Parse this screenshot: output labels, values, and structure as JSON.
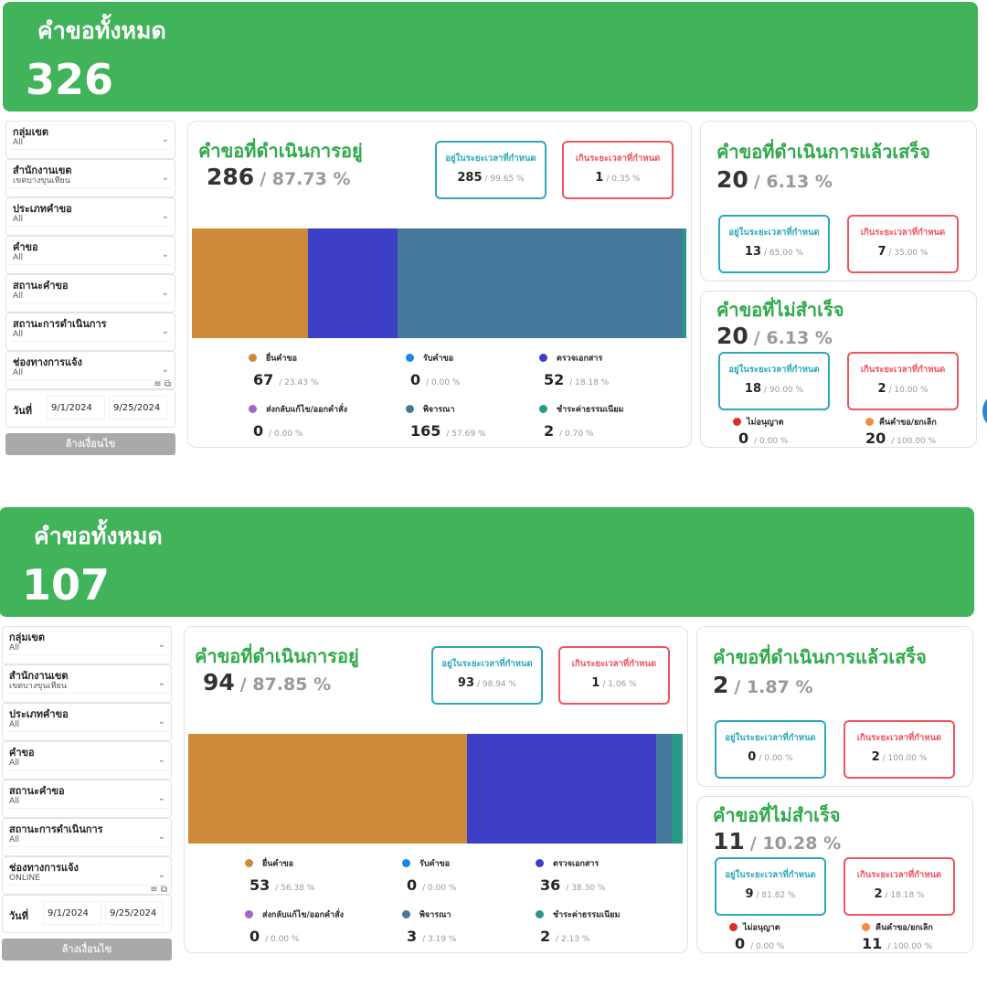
{
  "dashboards": [
    {
      "total_label": "คำขอทั้งหมด",
      "total": "326",
      "filters": [
        {
          "label": "กลุ่มเขต",
          "value": "All"
        },
        {
          "label": "สำนักงานเขต",
          "value": "เขตบางขุนเทียน"
        },
        {
          "label": "ประเภทคำขอ",
          "value": "All"
        },
        {
          "label": "คำขอ",
          "value": "All"
        },
        {
          "label": "สถานะคำขอ",
          "value": "All"
        },
        {
          "label": "สถานะการดำเนินการ",
          "value": "All"
        },
        {
          "label": "ช่องทางการแจ้ง",
          "value": "All"
        }
      ],
      "date": {
        "label": "วันที่",
        "from": "9/1/2024",
        "to": "9/25/2024"
      },
      "clear_label": "ล้างเงื่อนไข",
      "inprogress": {
        "title": "คำขอที่ดำเนินการอยู่",
        "count": "286",
        "pct": "/ 87.73 %",
        "ontime": {
          "label": "อยู่ในระยะเวลาที่กำหนด",
          "count": "285",
          "pct": "/ 99.65 %"
        },
        "overdue": {
          "label": "เกินระยะเวลาที่กำหนด",
          "count": "1",
          "pct": "/ 0.35 %"
        },
        "segments": [
          {
            "label": "ยื่นคำขอ",
            "value": 67,
            "count": "67",
            "pct": "/ 23.43 %",
            "color": "#CD8A3A"
          },
          {
            "label": "รับคำขอ",
            "value": 0,
            "count": "0",
            "pct": "/ 0.00 %",
            "color": "#1A86E8"
          },
          {
            "label": "ตรวจเอกสาร",
            "value": 52,
            "count": "52",
            "pct": "/ 18.18 %",
            "color": "#3D3FC6"
          },
          {
            "label": "ส่งกลับแก้ไข/ออกคำสั่ง",
            "value": 0,
            "count": "0",
            "pct": "/ 0.00 %",
            "color": "#A066CB"
          },
          {
            "label": "พิจารณา",
            "value": 165,
            "count": "165",
            "pct": "/ 57.69 %",
            "color": "#44799B"
          },
          {
            "label": "ชำระค่าธรรมเนียม",
            "value": 2,
            "count": "2",
            "pct": "/ 0.70 %",
            "color": "#2A9A88"
          }
        ]
      },
      "completed": {
        "title": "คำขอที่ดำเนินการแล้วเสร็จ",
        "count": "20",
        "pct": "/ 6.13 %",
        "ontime": {
          "label": "อยู่ในระยะเวลาที่กำหนด",
          "count": "13",
          "pct": "/ 65.00 %"
        },
        "overdue": {
          "label": "เกินระยะเวลาที่กำหนด",
          "count": "7",
          "pct": "/ 35.00 %"
        }
      },
      "failed": {
        "title": "คำขอที่ไม่สำเร็จ",
        "count": "20",
        "pct": "/ 6.13 %",
        "ontime": {
          "label": "อยู่ในระยะเวลาที่กำหนด",
          "count": "18",
          "pct": "/ 90.00 %"
        },
        "overdue": {
          "label": "เกินระยะเวลาที่กำหนด",
          "count": "2",
          "pct": "/ 10.00 %"
        },
        "outcomes": [
          {
            "label": "ไม่อนุญาต",
            "count": "0",
            "pct": "/ 0.00 %",
            "color": "#D93025"
          },
          {
            "label": "คืนคำขอ/ยกเลิก",
            "count": "20",
            "pct": "/ 100.00 %",
            "color": "#F58A42"
          }
        ]
      }
    },
    {
      "total_label": "คำขอทั้งหมด",
      "total": "107",
      "filters": [
        {
          "label": "กลุ่มเขต",
          "value": "All"
        },
        {
          "label": "สำนักงานเขต",
          "value": "เขตบางขุนเทียน"
        },
        {
          "label": "ประเภทคำขอ",
          "value": "All"
        },
        {
          "label": "คำขอ",
          "value": "All"
        },
        {
          "label": "สถานะคำขอ",
          "value": "All"
        },
        {
          "label": "สถานะการดำเนินการ",
          "value": "All"
        },
        {
          "label": "ช่องทางการแจ้ง",
          "value": "ONLINE"
        }
      ],
      "date": {
        "label": "วันที่",
        "from": "9/1/2024",
        "to": "9/25/2024"
      },
      "clear_label": "ล้างเงื่อนไข",
      "inprogress": {
        "title": "คำขอที่ดำเนินการอยู่",
        "count": "94",
        "pct": "/ 87.85 %",
        "ontime": {
          "label": "อยู่ในระยะเวลาที่กำหนด",
          "count": "93",
          "pct": "/ 98.94 %"
        },
        "overdue": {
          "label": "เกินระยะเวลาที่กำหนด",
          "count": "1",
          "pct": "/ 1.06 %"
        },
        "segments": [
          {
            "label": "ยื่นคำขอ",
            "value": 53,
            "count": "53",
            "pct": "/ 56.38 %",
            "color": "#CD8A3A"
          },
          {
            "label": "รับคำขอ",
            "value": 0,
            "count": "0",
            "pct": "/ 0.00 %",
            "color": "#1A86E8"
          },
          {
            "label": "ตรวจเอกสาร",
            "value": 36,
            "count": "36",
            "pct": "/ 38.30 %",
            "color": "#3D3FC6"
          },
          {
            "label": "ส่งกลับแก้ไข/ออกคำสั่ง",
            "value": 0,
            "count": "0",
            "pct": "/ 0.00 %",
            "color": "#A066CB"
          },
          {
            "label": "พิจารณา",
            "value": 3,
            "count": "3",
            "pct": "/ 3.19 %",
            "color": "#44799B"
          },
          {
            "label": "ชำระค่าธรรมเนียม",
            "value": 2,
            "count": "2",
            "pct": "/ 2.13 %",
            "color": "#2A9A88"
          }
        ]
      },
      "completed": {
        "title": "คำขอที่ดำเนินการแล้วเสร็จ",
        "count": "2",
        "pct": "/ 1.87 %",
        "ontime": {
          "label": "อยู่ในระยะเวลาที่กำหนด",
          "count": "0",
          "pct": "/ 0.00 %"
        },
        "overdue": {
          "label": "เกินระยะเวลาที่กำหนด",
          "count": "2",
          "pct": "/ 100.00 %"
        }
      },
      "failed": {
        "title": "คำขอที่ไม่สำเร็จ",
        "count": "11",
        "pct": "/ 10.28 %",
        "ontime": {
          "label": "อยู่ในระยะเวลาที่กำหนด",
          "count": "9",
          "pct": "/ 81.82 %"
        },
        "overdue": {
          "label": "เกินระยะเวลาที่กำหนด",
          "count": "2",
          "pct": "/ 18.18 %"
        },
        "outcomes": [
          {
            "label": "ไม่อนุญาต",
            "count": "0",
            "pct": "/ 0.00 %",
            "color": "#D93025"
          },
          {
            "label": "คืนคำขอ/ยกเลิก",
            "count": "11",
            "pct": "/ 100.00 %",
            "color": "#F58A42"
          }
        ]
      }
    }
  ]
}
